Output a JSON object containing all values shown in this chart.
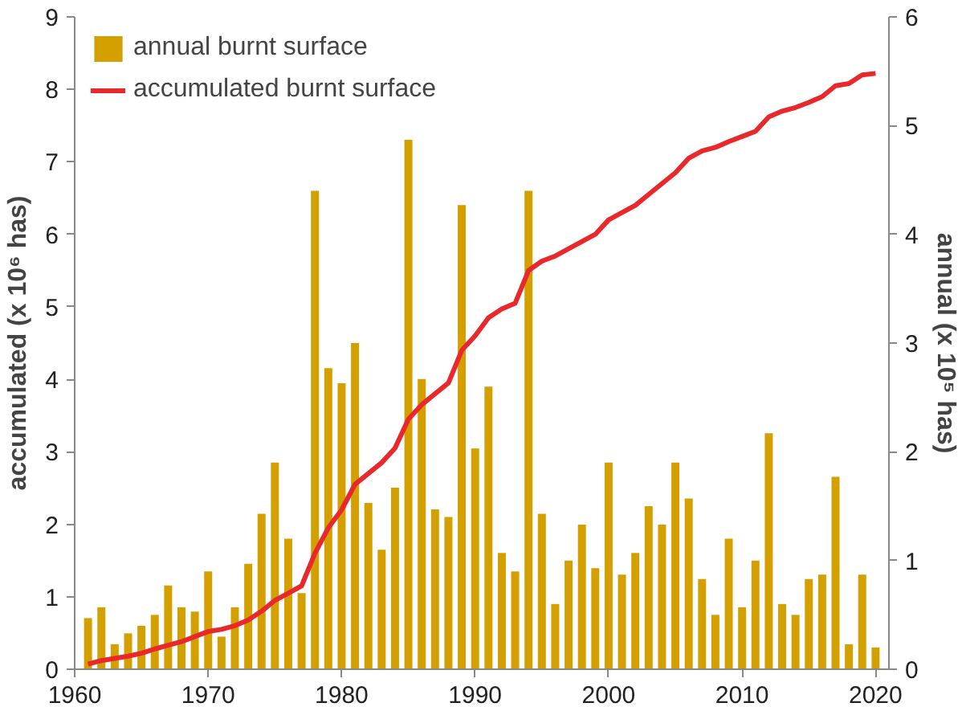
{
  "chart_data": {
    "type": "bar",
    "ylabel": "accumulated (x 10⁶ has)",
    "y2label": "annual (x 10⁵ has)",
    "x": [
      1961,
      1962,
      1963,
      1964,
      1965,
      1966,
      1967,
      1968,
      1969,
      1970,
      1971,
      1972,
      1973,
      1974,
      1975,
      1976,
      1977,
      1978,
      1979,
      1980,
      1981,
      1982,
      1983,
      1984,
      1985,
      1986,
      1987,
      1988,
      1989,
      1990,
      1991,
      1992,
      1993,
      1994,
      1995,
      1996,
      1997,
      1998,
      1999,
      2000,
      2001,
      2002,
      2003,
      2004,
      2005,
      2006,
      2007,
      2008,
      2009,
      2010,
      2011,
      2012,
      2013,
      2014,
      2015,
      2016,
      2017,
      2018,
      2019,
      2020
    ],
    "series": [
      {
        "name": "annual burnt surface",
        "axis": "y2",
        "color": "#d4a000",
        "values": [
          0.47,
          0.57,
          0.23,
          0.33,
          0.4,
          0.5,
          0.77,
          0.57,
          0.53,
          0.9,
          0.3,
          0.57,
          0.97,
          1.43,
          1.9,
          1.2,
          0.7,
          4.4,
          2.77,
          2.63,
          3.0,
          1.53,
          1.1,
          1.67,
          4.87,
          2.67,
          1.47,
          1.4,
          4.27,
          2.03,
          2.6,
          1.07,
          0.9,
          4.4,
          1.43,
          0.6,
          1.0,
          1.33,
          0.93,
          1.9,
          0.87,
          1.07,
          1.5,
          1.33,
          1.9,
          1.57,
          0.83,
          0.5,
          1.2,
          0.57,
          1.0,
          2.17,
          0.6,
          0.5,
          0.83,
          0.87,
          1.77,
          0.23,
          0.87,
          0.2
        ]
      },
      {
        "name": "accumulated burnt surface",
        "type": "line",
        "color": "#e8282b",
        "values": [
          0.07,
          0.12,
          0.15,
          0.18,
          0.22,
          0.28,
          0.33,
          0.38,
          0.45,
          0.52,
          0.55,
          0.6,
          0.68,
          0.8,
          0.95,
          1.05,
          1.15,
          1.6,
          1.95,
          2.2,
          2.55,
          2.7,
          2.85,
          3.05,
          3.45,
          3.65,
          3.8,
          3.95,
          4.4,
          4.6,
          4.85,
          4.97,
          5.05,
          5.5,
          5.63,
          5.7,
          5.8,
          5.9,
          6.0,
          6.2,
          6.3,
          6.4,
          6.55,
          6.7,
          6.85,
          7.05,
          7.15,
          7.2,
          7.28,
          7.35,
          7.42,
          7.62,
          7.7,
          7.75,
          7.82,
          7.9,
          8.05,
          8.08,
          8.2,
          8.22
        ]
      }
    ],
    "xlim": [
      1960,
      2021
    ],
    "xticks": [
      1960,
      1970,
      1980,
      1990,
      2000,
      2010,
      2020
    ],
    "ylim": [
      0,
      9
    ],
    "yticks": [
      0,
      1,
      2,
      3,
      4,
      5,
      6,
      7,
      8,
      9
    ],
    "y2lim": [
      0,
      6
    ],
    "y2ticks": [
      0,
      1,
      2,
      3,
      4,
      5,
      6
    ],
    "legend": "top left",
    "grid": false
  }
}
